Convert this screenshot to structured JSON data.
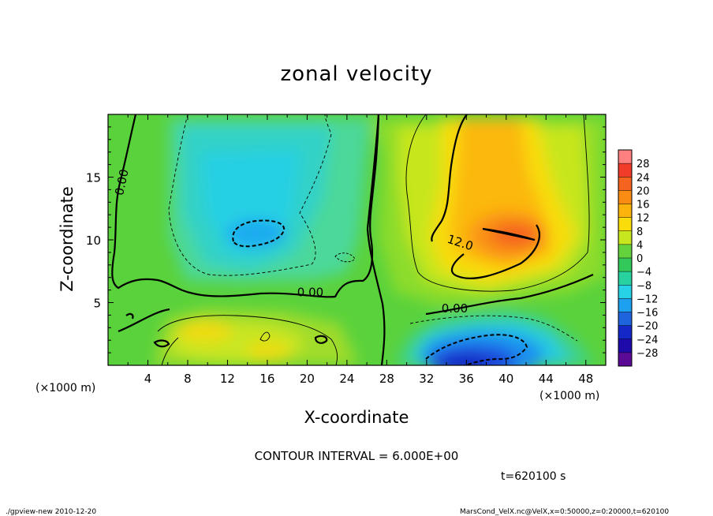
{
  "chart_data": {
    "type": "contour",
    "title": "zonal velocity",
    "xlabel": "X-coordinate",
    "ylabel": "Z-coordinate",
    "x_unit_label": "(×1000 m)",
    "y_unit_label": "(×1000 m)",
    "xlim": [
      0,
      50
    ],
    "ylim": [
      0,
      20
    ],
    "x_ticks": [
      4,
      8,
      12,
      16,
      20,
      24,
      28,
      32,
      36,
      40,
      44,
      48
    ],
    "y_ticks": [
      5,
      10,
      15
    ],
    "contour_interval_text": "CONTOUR INTERVAL = 6.000E+00",
    "time_text": "t=620100 s",
    "contour_labels": [
      {
        "text": "0.00",
        "x": 1.5,
        "y": 13.5
      },
      {
        "text": "0.00",
        "x": 19,
        "y": 5.5
      },
      {
        "text": "0.00",
        "x": 33.5,
        "y": 4.2
      },
      {
        "text": "12.0",
        "x": 34,
        "y": 9.8
      }
    ],
    "colorbar": {
      "levels": [
        "28",
        "24",
        "20",
        "16",
        "12",
        "8",
        "4",
        "0",
        "−4",
        "−8",
        "−12",
        "−16",
        "−20",
        "−24",
        "−28"
      ],
      "colors": [
        "#ff8080",
        "#f03c28",
        "#f5641e",
        "#fa8c14",
        "#fcb40c",
        "#fadc0a",
        "#c8e61e",
        "#64d23c",
        "#32c85a",
        "#28d2a0",
        "#28d2e6",
        "#1ea0f0",
        "#1e64dc",
        "#1428c8",
        "#1e0aaa",
        "#5a0a96"
      ]
    },
    "regions": [
      {
        "name": "negative-core-upper-left",
        "center": [
          15,
          10.5
        ],
        "min_value": -12
      },
      {
        "name": "negative-core-bottom-right",
        "center": [
          36,
          1
        ],
        "min_value": -24
      },
      {
        "name": "positive-core-upper-right",
        "center": [
          40,
          10.5
        ],
        "max_value": 18
      },
      {
        "name": "positive-core-lower-left",
        "center": [
          16,
          2
        ],
        "max_value": 8
      }
    ]
  },
  "footer": {
    "left": "./gpview-new  2010-12-20",
    "right": "MarsCond_VelX.nc@VelX,x=0:50000,z=0:20000,t=620100"
  }
}
